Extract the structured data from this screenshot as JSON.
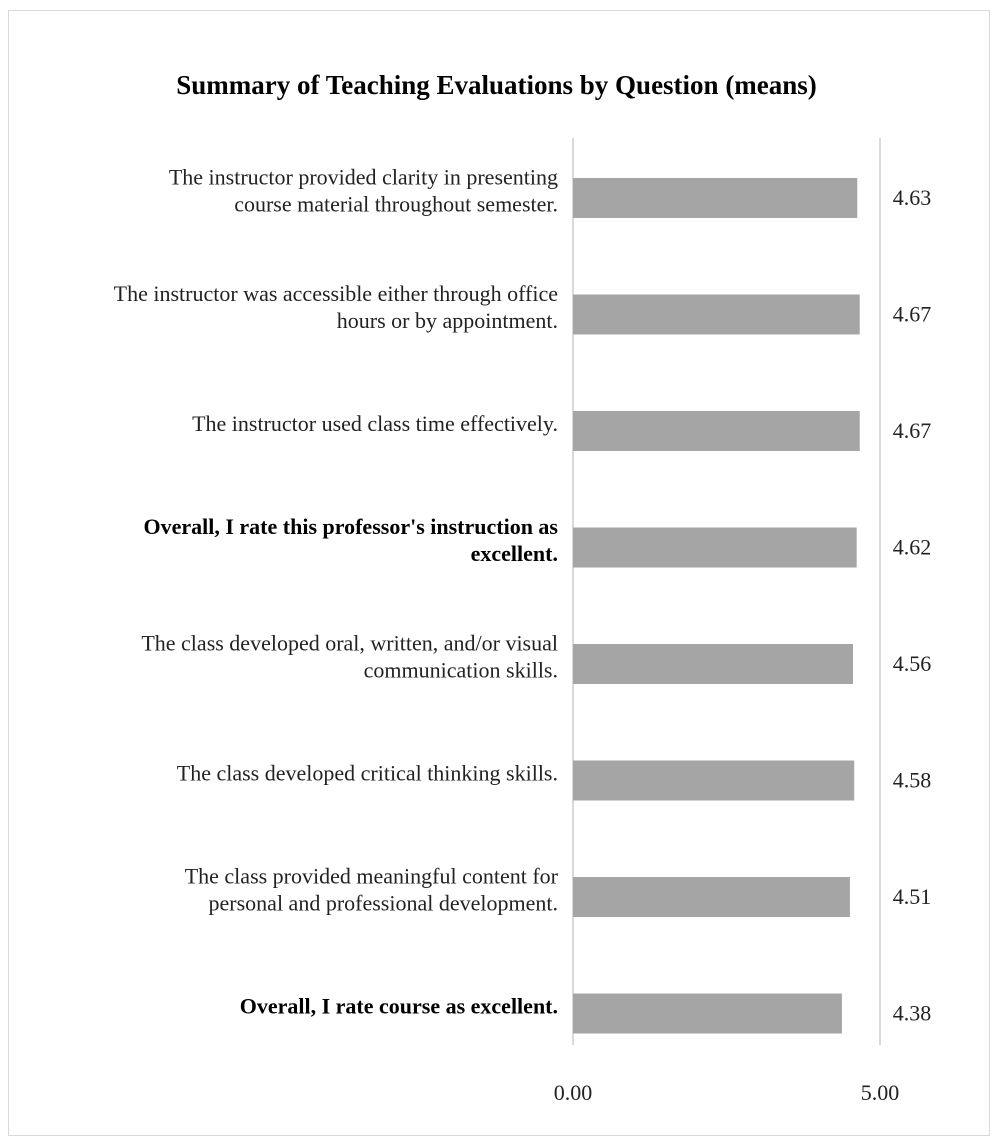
{
  "chart_data": {
    "type": "bar",
    "orientation": "horizontal",
    "title": "Summary of Teaching Evaluations by Question (means)",
    "xlim": [
      0,
      5
    ],
    "xticks": [
      "0.00",
      "5.00"
    ],
    "grid": true,
    "bar_color": "#a5a5a5",
    "categories": [
      {
        "lines": [
          "The instructor provided clarity  in presenting",
          "course material  throughout semester."
        ],
        "bold": false
      },
      {
        "lines": [
          "The instructor was accessible either through office",
          "hours or by appointment."
        ],
        "bold": false
      },
      {
        "lines": [
          "The instructor used class time effectively."
        ],
        "bold": false
      },
      {
        "lines": [
          "Overall, I rate this professor's instruction as",
          "excellent."
        ],
        "bold": true
      },
      {
        "lines": [
          "The class developed oral, written, and/or visual",
          "communication  skills."
        ],
        "bold": false
      },
      {
        "lines": [
          "The class developed critical  thinking skills."
        ],
        "bold": false
      },
      {
        "lines": [
          "The class provided meaningful content for",
          "personal and professional development."
        ],
        "bold": false
      },
      {
        "lines": [
          "Overall,  I rate course as excellent."
        ],
        "bold": true
      }
    ],
    "values": [
      4.63,
      4.67,
      4.67,
      4.62,
      4.56,
      4.58,
      4.51,
      4.38
    ],
    "value_labels": [
      "4.63",
      "4.67",
      "4.67",
      "4.62",
      "4.56",
      "4.58",
      "4.51",
      "4.38"
    ]
  }
}
